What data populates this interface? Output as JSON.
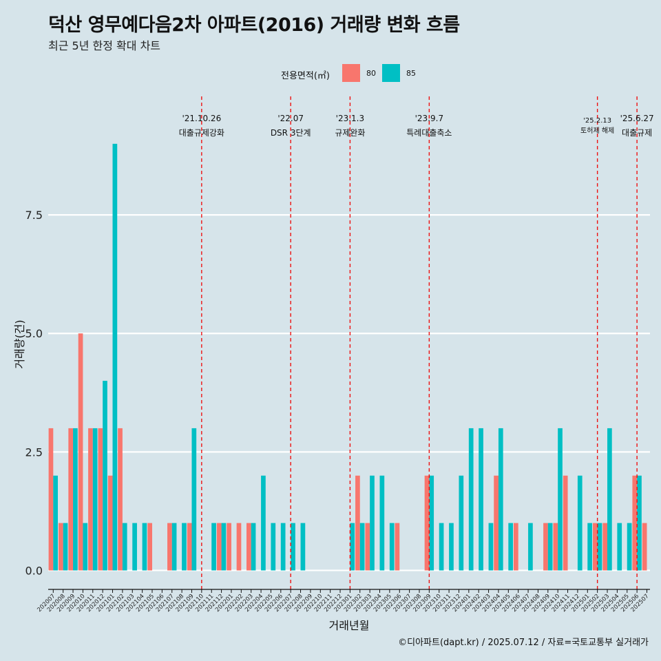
{
  "title": "덕산 영무예다음2차 아파트(2016) 거래량 변화 흐름",
  "subtitle": "최근 5년 한정 확대 차트",
  "legend": {
    "title": "전용면적(㎡)",
    "items": [
      {
        "label": "80",
        "color": "#f8766d"
      },
      {
        "label": "85",
        "color": "#00bfc4"
      }
    ]
  },
  "caption": "©디아파트(dapt.kr) / 2025.07.12 / 자료=국토교통부 실거래가",
  "chart_data": {
    "type": "bar",
    "xlabel": "거래년월",
    "ylabel": "거래량(건)",
    "ylim": [
      -0.4,
      10.0
    ],
    "yticks": [
      0.0,
      2.5,
      5.0,
      7.5
    ],
    "ytick_labels": [
      "0.0",
      "2.5",
      "5.0",
      "7.5"
    ],
    "categories": [
      "202007",
      "202008",
      "202009",
      "202010",
      "202011",
      "202012",
      "202101",
      "202102",
      "202103",
      "202104",
      "202105",
      "202106",
      "202107",
      "202108",
      "202109",
      "202110",
      "202111",
      "202112",
      "202201",
      "202202",
      "202203",
      "202204",
      "202205",
      "202206",
      "202207",
      "202208",
      "202209",
      "202210",
      "202211",
      "202212",
      "202301",
      "202302",
      "202303",
      "202304",
      "202305",
      "202306",
      "202307",
      "202308",
      "202309",
      "202310",
      "202311",
      "202312",
      "202401",
      "202402",
      "202403",
      "202404",
      "202405",
      "202406",
      "202407",
      "202408",
      "202409",
      "202410",
      "202411",
      "202412",
      "202501",
      "202502",
      "202503",
      "202504",
      "202505",
      "202506",
      "202507"
    ],
    "series": [
      {
        "name": "80",
        "color": "#f8766d",
        "values": [
          3,
          1,
          3,
          5,
          3,
          3,
          2,
          3,
          0,
          0,
          1,
          0,
          1,
          0,
          1,
          0,
          0,
          1,
          1,
          1,
          1,
          0,
          0,
          0,
          0,
          0,
          0,
          0,
          0,
          0,
          0,
          2,
          1,
          0,
          0,
          1,
          0,
          0,
          2,
          0,
          0,
          0,
          0,
          0,
          0,
          2,
          0,
          1,
          0,
          0,
          1,
          1,
          2,
          0,
          0,
          1,
          1,
          0,
          0,
          2,
          1
        ]
      },
      {
        "name": "85",
        "color": "#00bfc4",
        "values": [
          2,
          1,
          3,
          1,
          3,
          4,
          9,
          1,
          1,
          1,
          0,
          0,
          1,
          1,
          3,
          0,
          1,
          1,
          0,
          0,
          1,
          2,
          1,
          1,
          1,
          1,
          0,
          0,
          0,
          0,
          1,
          1,
          2,
          2,
          1,
          0,
          0,
          0,
          2,
          1,
          1,
          2,
          3,
          3,
          1,
          3,
          1,
          0,
          1,
          0,
          1,
          3,
          0,
          2,
          1,
          1,
          3,
          1,
          1,
          2,
          0
        ]
      }
    ],
    "events": [
      {
        "date": "'21.10.26",
        "label": "대출규제강화",
        "x": "202110"
      },
      {
        "date": "'22.07",
        "label": "DSR 3단계",
        "x": "202207"
      },
      {
        "date": "'23.1.3",
        "label": "규제완화",
        "x": "202301"
      },
      {
        "date": "'23.9.7",
        "label": "특례대출축소",
        "x": "202309"
      },
      {
        "date": "'25.2.13",
        "label": "토허제 해제",
        "x": "202502"
      },
      {
        "date": "'25.6.27",
        "label": "대출규제",
        "x": "202506"
      }
    ],
    "grid": true,
    "legend_position": "top"
  }
}
